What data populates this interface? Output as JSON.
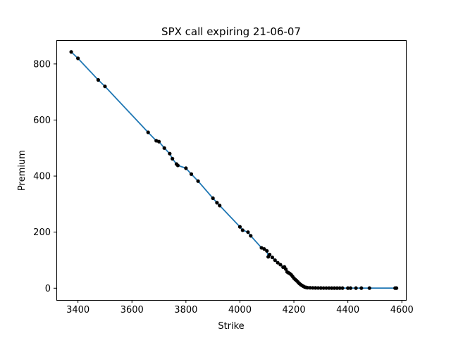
{
  "chart_data": {
    "type": "scatter",
    "title": "SPX call expiring 21-06-07",
    "xlabel": "Strike",
    "ylabel": "Premium",
    "xlim": [
      3320,
      4615
    ],
    "ylim": [
      -42,
      885
    ],
    "xticks": [
      3400,
      3600,
      3800,
      4000,
      4200,
      4400,
      4600
    ],
    "yticks": [
      0,
      200,
      400,
      600,
      800
    ],
    "grid": false,
    "colors": {
      "line": "#1f77b4",
      "points": "#000000",
      "axes": "#000000",
      "background": "#ffffff"
    },
    "series": [
      {
        "kind": "line",
        "x": [
          3375,
          3400,
          3475,
          3500,
          3660,
          3690,
          3700,
          3720,
          3740,
          3750,
          3765,
          3770,
          3800,
          3820,
          3845,
          3900,
          3915,
          3925,
          4000,
          4010,
          4030,
          4040,
          4080,
          4090,
          4100,
          4105,
          4110,
          4120,
          4130,
          4140,
          4150,
          4160,
          4165,
          4170,
          4175,
          4180,
          4185,
          4190,
          4195,
          4200,
          4205,
          4210,
          4215,
          4220,
          4225,
          4230,
          4235,
          4240,
          4245,
          4250,
          4260,
          4270,
          4280,
          4290,
          4300,
          4310,
          4320,
          4330,
          4340,
          4350,
          4360,
          4370,
          4380,
          4400,
          4410,
          4430,
          4450,
          4480,
          4575,
          4580
        ],
        "y": [
          843,
          820,
          743,
          720,
          556,
          526,
          523,
          500,
          480,
          462,
          443,
          438,
          428,
          407,
          382,
          321,
          305,
          295,
          219,
          207,
          200,
          187,
          144,
          140,
          133,
          112,
          120,
          110,
          100,
          91,
          84,
          75,
          76,
          68,
          58,
          55,
          52,
          48,
          42,
          36,
          31,
          27,
          22,
          17,
          13,
          10,
          7,
          4,
          3,
          2,
          1.5,
          1.2,
          1,
          0.8,
          0.7,
          0.6,
          0.5,
          0.5,
          0.4,
          0.4,
          0.4,
          0.3,
          0.3,
          0.3,
          0.3,
          0.3,
          0.3,
          0.3,
          0.3,
          0.3
        ]
      },
      {
        "kind": "scatter",
        "x": [
          3375,
          3400,
          3475,
          3500,
          3660,
          3690,
          3700,
          3720,
          3740,
          3750,
          3765,
          3770,
          3800,
          3820,
          3845,
          3900,
          3915,
          3925,
          4000,
          4010,
          4030,
          4040,
          4080,
          4090,
          4100,
          4105,
          4110,
          4120,
          4130,
          4140,
          4150,
          4160,
          4165,
          4170,
          4175,
          4180,
          4185,
          4190,
          4195,
          4200,
          4205,
          4210,
          4215,
          4220,
          4225,
          4230,
          4235,
          4240,
          4245,
          4250,
          4260,
          4270,
          4280,
          4290,
          4300,
          4310,
          4320,
          4330,
          4340,
          4350,
          4360,
          4370,
          4380,
          4400,
          4410,
          4430,
          4450,
          4480,
          4575,
          4580
        ],
        "y": [
          843,
          820,
          743,
          720,
          556,
          526,
          523,
          500,
          480,
          462,
          443,
          438,
          428,
          407,
          382,
          321,
          305,
          295,
          219,
          207,
          200,
          187,
          144,
          140,
          133,
          112,
          120,
          110,
          100,
          91,
          84,
          75,
          76,
          68,
          58,
          55,
          52,
          48,
          42,
          36,
          31,
          27,
          22,
          17,
          13,
          10,
          7,
          4,
          3,
          2,
          1.5,
          1.2,
          1,
          0.8,
          0.7,
          0.6,
          0.5,
          0.5,
          0.4,
          0.4,
          0.4,
          0.3,
          0.3,
          0.3,
          0.3,
          0.3,
          0.3,
          0.3,
          0.3,
          0.3
        ]
      }
    ]
  }
}
